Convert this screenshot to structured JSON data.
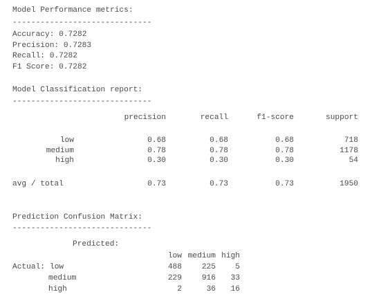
{
  "metrics": {
    "title": "Model Performance metrics:",
    "separator": "------------------------------",
    "items": [
      {
        "label": "Accuracy:",
        "value": "0.7282"
      },
      {
        "label": "Precision:",
        "value": "0.7283"
      },
      {
        "label": "Recall:",
        "value": "0.7282"
      },
      {
        "label": "F1 Score:",
        "value": "0.7282"
      }
    ]
  },
  "report": {
    "title": "Model Classification report:",
    "separator": "------------------------------",
    "columns": [
      "precision",
      "recall",
      "f1-score",
      "support"
    ],
    "rows": [
      {
        "label": "low",
        "cells": [
          "0.68",
          "0.68",
          "0.68",
          "718"
        ]
      },
      {
        "label": "medium",
        "cells": [
          "0.78",
          "0.78",
          "0.78",
          "1178"
        ]
      },
      {
        "label": "high",
        "cells": [
          "0.30",
          "0.30",
          "0.30",
          "54"
        ]
      }
    ],
    "total": {
      "label": "avg / total",
      "cells": [
        "0.73",
        "0.73",
        "0.73",
        "1950"
      ]
    }
  },
  "confusion": {
    "title": "Prediction Confusion Matrix:",
    "separator": "------------------------------",
    "predicted_label": "Predicted:",
    "actual_label": "Actual:",
    "columns": [
      "low",
      "medium",
      "high"
    ],
    "rows": [
      {
        "label": "low",
        "cells": [
          "488",
          "225",
          "5"
        ]
      },
      {
        "label": "medium",
        "cells": [
          "229",
          "916",
          "33"
        ]
      },
      {
        "label": "high",
        "cells": [
          "2",
          "36",
          "16"
        ]
      }
    ]
  }
}
